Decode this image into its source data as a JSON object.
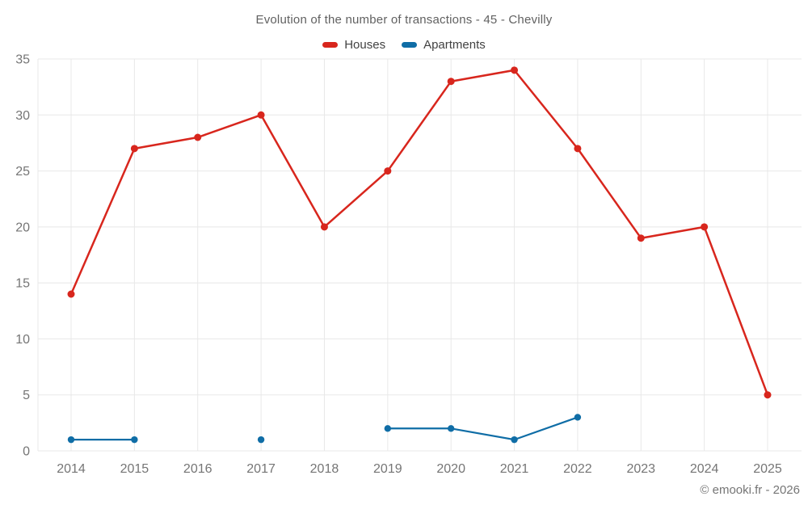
{
  "page": {
    "footer": "© emooki.fr - 2026"
  },
  "colors": {
    "background": "#ffffff",
    "grid": "#e8e8e8",
    "axis_text": "#757575",
    "title_text": "#616161",
    "legend_text": "#424242",
    "footer_text": "#757575"
  },
  "chart_data": {
    "type": "line",
    "title": "Evolution of the number of transactions - 45 - Chevilly",
    "categories": [
      "2014",
      "2015",
      "2016",
      "2017",
      "2018",
      "2019",
      "2020",
      "2021",
      "2022",
      "2023",
      "2024",
      "2025"
    ],
    "series": [
      {
        "name": "Houses",
        "color": "#d8261d",
        "line_width": 2.5,
        "point_radius": 4.5,
        "values": [
          14,
          27,
          28,
          30,
          20,
          25,
          33,
          34,
          27,
          19,
          20,
          5
        ]
      },
      {
        "name": "Apartments",
        "color": "#0f6da6",
        "line_width": 2.2,
        "point_radius": 4.2,
        "values": [
          1,
          1,
          null,
          1,
          null,
          2,
          2,
          1,
          3,
          null,
          null,
          null
        ]
      }
    ],
    "xlabel": "",
    "ylabel": "",
    "ylim": [
      0,
      35
    ],
    "ytick_step": 5,
    "grid": true,
    "legend_position": "top"
  }
}
